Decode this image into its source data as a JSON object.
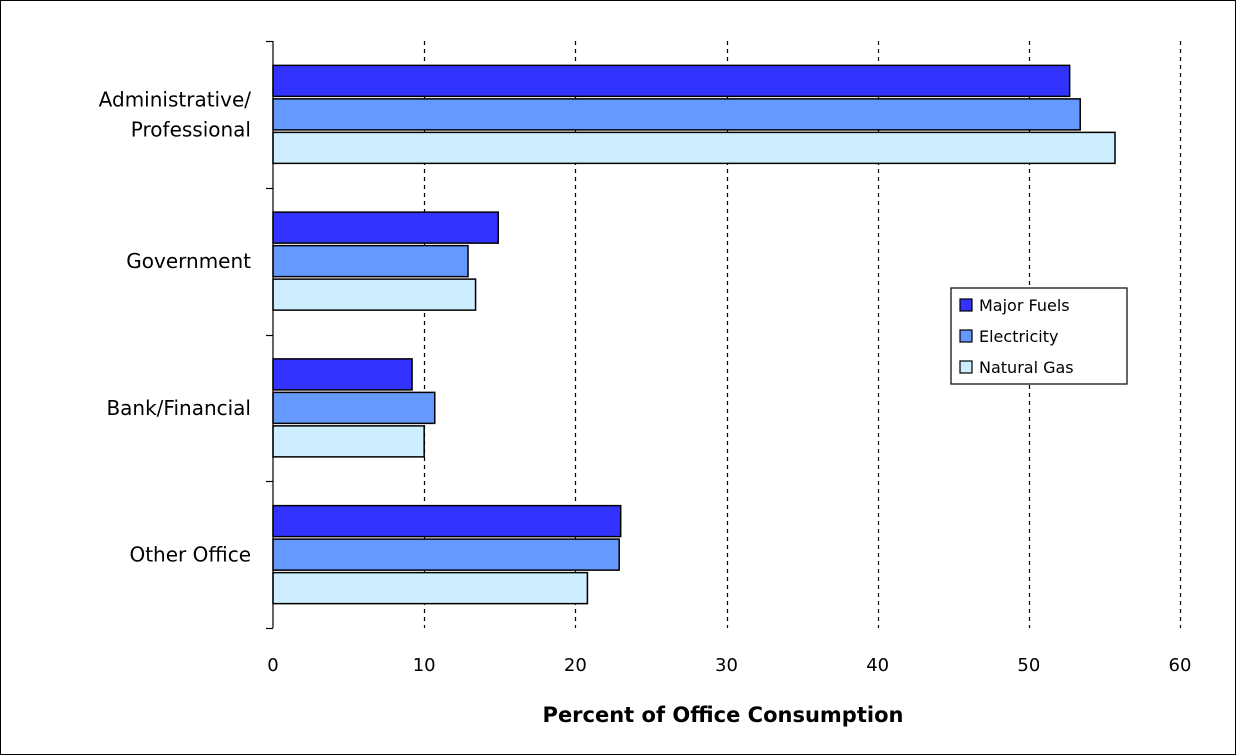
{
  "chart_data": {
    "type": "bar",
    "orientation": "horizontal",
    "categories": [
      "Administrative/Professional",
      "Government",
      "Bank/Financial",
      "Other Office"
    ],
    "category_label_lines": [
      [
        "Administrative/",
        "Professional"
      ],
      [
        "Government"
      ],
      [
        "Bank/Financial"
      ],
      [
        "Other Office"
      ]
    ],
    "series": [
      {
        "name": "Major Fuels",
        "color": "#3333ff",
        "values": [
          52.7,
          14.9,
          9.2,
          23.0
        ]
      },
      {
        "name": "Electricity",
        "color": "#6699ff",
        "values": [
          53.4,
          12.9,
          10.7,
          22.9
        ]
      },
      {
        "name": "Natural Gas",
        "color": "#cceeff",
        "values": [
          55.7,
          13.4,
          10.0,
          20.8
        ]
      }
    ],
    "xlabel": "Percent of Office Consumption",
    "ylabel": "",
    "title": "",
    "xlim": [
      0,
      60
    ],
    "xticks": [
      0,
      10,
      20,
      30,
      40,
      50,
      60
    ],
    "grid": "vertical dashed",
    "legend_position": "right"
  }
}
